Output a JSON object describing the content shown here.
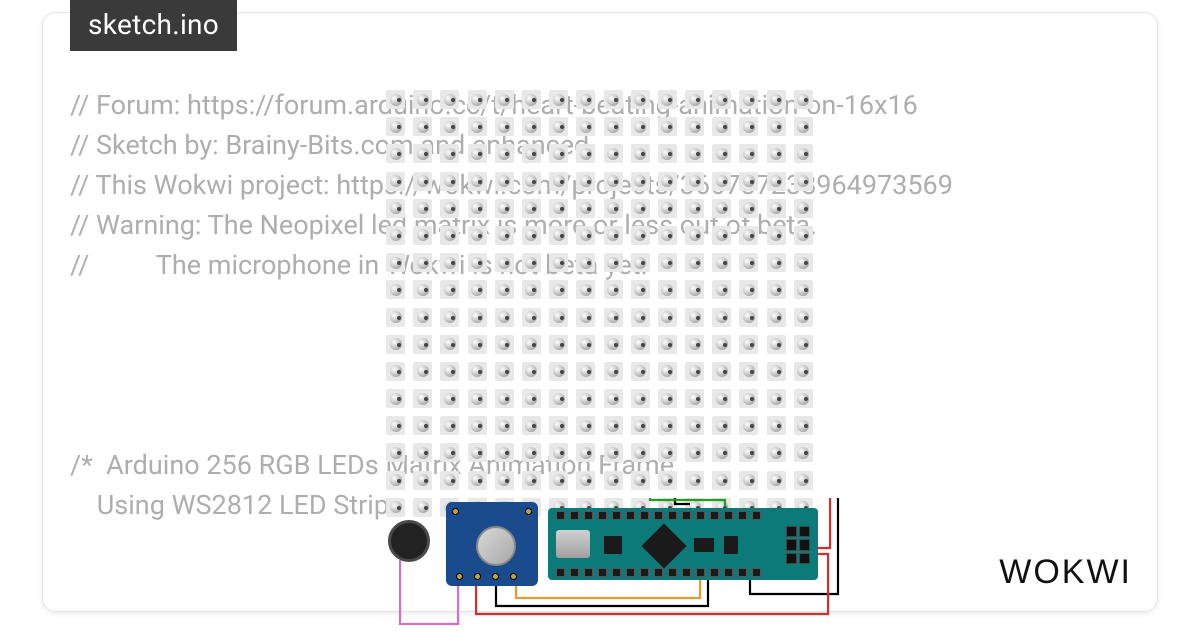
{
  "tab": {
    "title": "sketch.ino"
  },
  "code": {
    "line1": "// Forum: https://forum.arduino.cc/t/heart-beating-animation-on-16x16",
    "line2": "// Sketch by: Brainy-Bits.com and enhanced",
    "line3": "// This Wokwi project: https://wokwi.com/projects/366787238964973569",
    "line4": "// Warning: The Neopixel led matrix is more or less out of beta.",
    "line5": "//          The microphone in Wokwi is not beta yet.",
    "line6": "",
    "line7": "",
    "line8": "",
    "line9": "",
    "line10": "/*  Arduino 256 RGB LEDs Matrix Animation Frame",
    "line11": "    Using WS2812 LED Strips"
  },
  "logo": {
    "text": "WOKWI"
  },
  "simulation": {
    "led_matrix": {
      "rows": 16,
      "cols": 16
    },
    "components": [
      {
        "name": "microphone",
        "color": "#222"
      },
      {
        "name": "sound-sensor-board",
        "color": "#1a4b8c"
      },
      {
        "name": "arduino-nano",
        "color": "#0d7a7a"
      }
    ],
    "wires": [
      {
        "name": "w1",
        "color": "#000000"
      },
      {
        "name": "w2",
        "color": "#d62d2d"
      },
      {
        "name": "w3",
        "color": "#1fa01f"
      },
      {
        "name": "w4",
        "color": "#e89b2a"
      },
      {
        "name": "w5",
        "color": "#d66fc6"
      },
      {
        "name": "w6",
        "color": "#000000"
      },
      {
        "name": "w7",
        "color": "#d62d2d"
      },
      {
        "name": "w8",
        "color": "#000000"
      }
    ]
  }
}
